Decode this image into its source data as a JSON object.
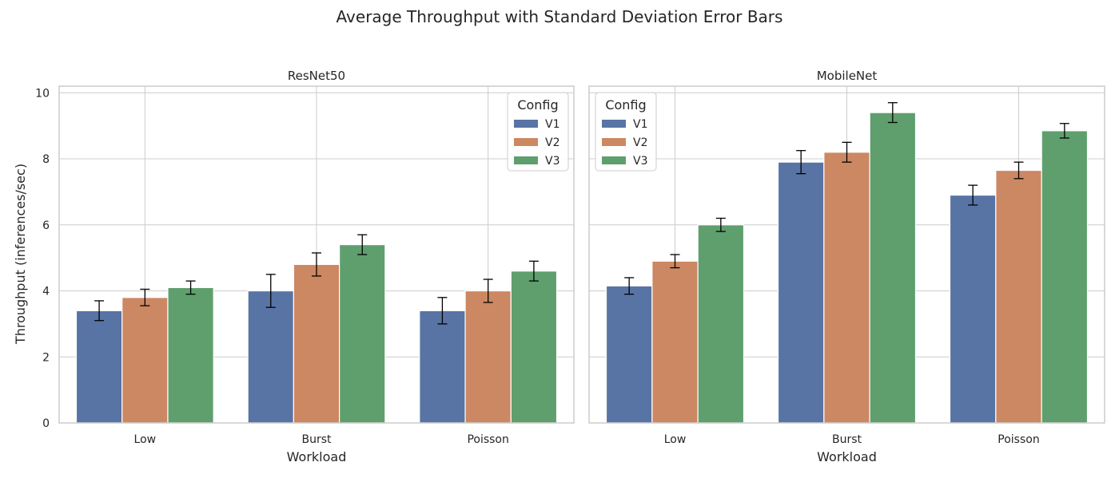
{
  "chart_data": {
    "type": "bar",
    "suptitle": "Average Throughput with Standard Deviation Error Bars",
    "shared_ylabel": "Throughput (inferences/sec)",
    "ylim": [
      0,
      10.2
    ],
    "yticks": [
      0,
      2,
      4,
      6,
      8,
      10
    ],
    "legend": {
      "title": "Config",
      "entries": [
        "V1",
        "V2",
        "V3"
      ]
    },
    "colors": {
      "V1": "#5874a5",
      "V2": "#cc8863",
      "V3": "#5f9f6e"
    },
    "panels": [
      {
        "title": "ResNet50",
        "xlabel": "Workload",
        "categories": [
          "Low",
          "Burst",
          "Poisson"
        ],
        "legend_position": "top-right",
        "series": [
          {
            "name": "V1",
            "values": [
              3.4,
              4.0,
              3.4
            ],
            "errors": [
              0.3,
              0.5,
              0.4
            ]
          },
          {
            "name": "V2",
            "values": [
              3.8,
              4.8,
              4.0
            ],
            "errors": [
              0.25,
              0.35,
              0.35
            ]
          },
          {
            "name": "V3",
            "values": [
              4.1,
              5.4,
              4.6
            ],
            "errors": [
              0.2,
              0.3,
              0.3
            ]
          }
        ]
      },
      {
        "title": "MobileNet",
        "xlabel": "Workload",
        "categories": [
          "Low",
          "Burst",
          "Poisson"
        ],
        "legend_position": "top-left",
        "series": [
          {
            "name": "V1",
            "values": [
              4.15,
              7.9,
              6.9
            ],
            "errors": [
              0.25,
              0.35,
              0.3
            ]
          },
          {
            "name": "V2",
            "values": [
              4.9,
              8.2,
              7.65
            ],
            "errors": [
              0.2,
              0.3,
              0.25
            ]
          },
          {
            "name": "V3",
            "values": [
              6.0,
              9.4,
              8.85
            ],
            "errors": [
              0.2,
              0.3,
              0.22
            ]
          }
        ]
      }
    ]
  }
}
